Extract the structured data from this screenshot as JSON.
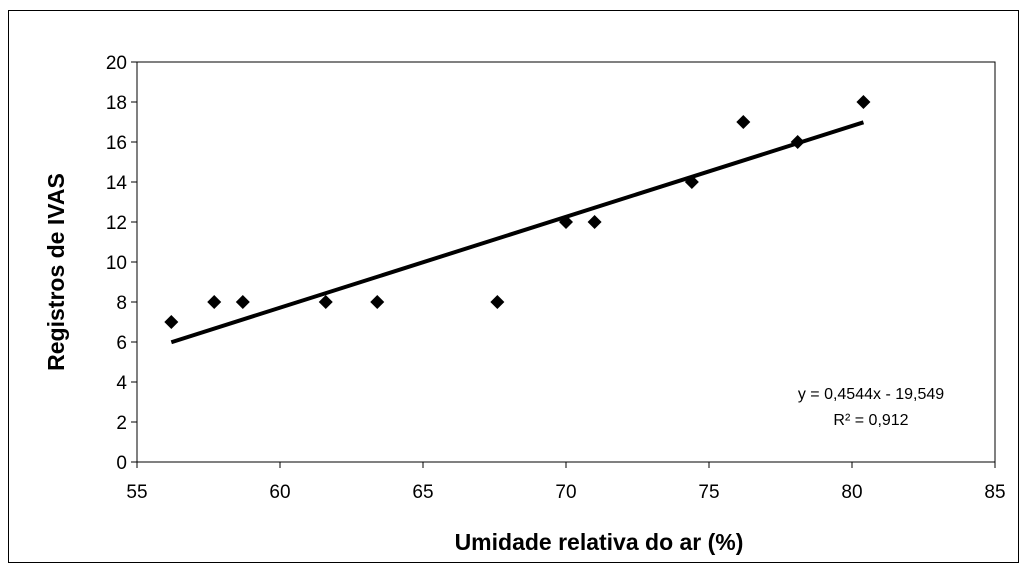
{
  "chart_data": {
    "type": "scatter",
    "xlabel": "Umidade relativa do ar (%)",
    "ylabel": "Registros de IVAS",
    "xlim": [
      55,
      85
    ],
    "ylim": [
      0,
      20
    ],
    "x_ticks": [
      55,
      60,
      65,
      70,
      75,
      80,
      85
    ],
    "y_ticks": [
      0,
      2,
      4,
      6,
      8,
      10,
      12,
      14,
      16,
      18,
      20
    ],
    "x_tick_labels": [
      "55",
      "60",
      "65",
      "70",
      "75",
      "80",
      "85"
    ],
    "y_tick_labels": [
      "0",
      "2",
      "4",
      "6",
      "8",
      "10",
      "12",
      "14",
      "16",
      "18",
      "20"
    ],
    "points": [
      {
        "x": 56.2,
        "y": 7
      },
      {
        "x": 57.7,
        "y": 8
      },
      {
        "x": 58.7,
        "y": 8
      },
      {
        "x": 61.6,
        "y": 8
      },
      {
        "x": 63.4,
        "y": 8
      },
      {
        "x": 67.6,
        "y": 8
      },
      {
        "x": 70.0,
        "y": 12
      },
      {
        "x": 71.0,
        "y": 12
      },
      {
        "x": 74.4,
        "y": 14
      },
      {
        "x": 76.2,
        "y": 17
      },
      {
        "x": 78.1,
        "y": 16
      },
      {
        "x": 80.4,
        "y": 18
      }
    ],
    "trendline": {
      "type": "linear",
      "slope": 0.4544,
      "intercept": -19.549,
      "x_range": [
        56.2,
        80.4
      ],
      "equation_label": "y = 0,4544x  - 19,549",
      "r2_label": "R² = 0,912"
    },
    "marker": "diamond",
    "marker_color": "#000000",
    "line_color": "#000000",
    "grid": false,
    "legend": "none"
  }
}
